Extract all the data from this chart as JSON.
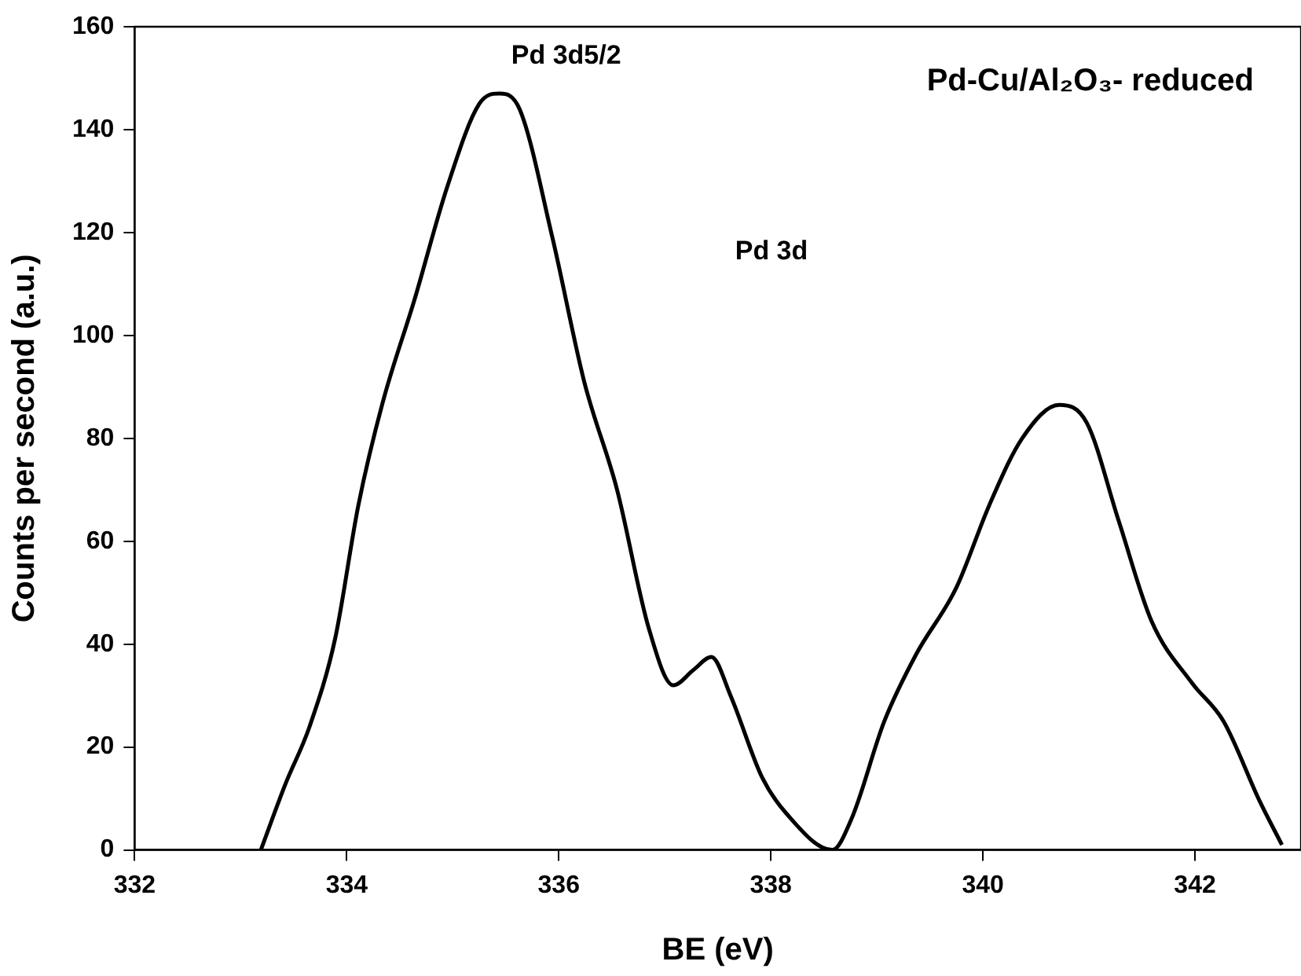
{
  "chart_data": {
    "type": "line",
    "title": "Pd-Cu/Al₂O₃- reduced",
    "xlabel": "BE (eV)",
    "ylabel": "Counts per second (a.u.)",
    "annotations": [
      "Pd 3d5/2",
      "Pd 3d"
    ],
    "xlim": [
      332,
      343
    ],
    "xticks": [
      332,
      334,
      336,
      338,
      340,
      342
    ],
    "ylim": [
      0,
      160
    ],
    "yticks": [
      0,
      20,
      40,
      60,
      80,
      100,
      120,
      140,
      160
    ],
    "grid": false,
    "legend": false,
    "marker": "none",
    "line_style": "solid",
    "series": [
      {
        "color": "#000000",
        "x": [
          333.19,
          333.42,
          333.65,
          333.89,
          334.11,
          334.34,
          334.64,
          334.95,
          335.25,
          335.44,
          335.63,
          335.94,
          336.24,
          336.55,
          336.85,
          337.08,
          337.27,
          337.44,
          337.62,
          337.92,
          338.15,
          338.58,
          338.76,
          339.07,
          339.37,
          339.75,
          340.06,
          340.37,
          340.72,
          340.98,
          341.28,
          341.59,
          341.97,
          342.27,
          342.61,
          342.82
        ],
        "values": [
          0,
          12.7,
          24,
          41,
          67,
          87,
          107,
          129,
          145,
          147,
          144,
          119,
          91,
          70,
          43,
          32,
          35,
          37.5,
          30,
          14,
          7,
          0,
          6,
          25,
          38,
          51,
          67,
          80,
          86.5,
          83,
          64,
          44.5,
          32.5,
          25,
          9.5,
          1
        ]
      }
    ]
  }
}
